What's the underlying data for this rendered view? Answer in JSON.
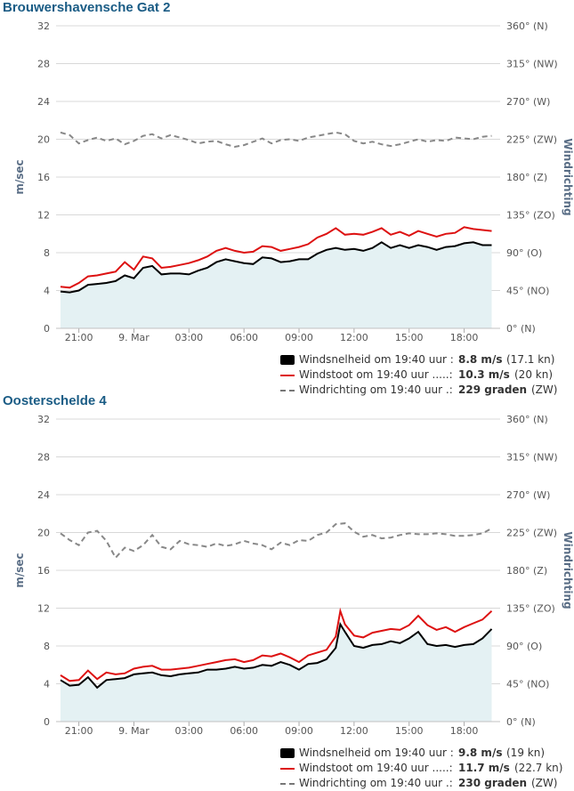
{
  "stations": [
    {
      "title": "Brouwershavensche Gat 2",
      "chart_data": {
        "type": "line",
        "y_axis_left": {
          "label": "m/sec",
          "ticks": [
            "0",
            "4",
            "8",
            "12",
            "16",
            "20",
            "24",
            "28",
            "32"
          ],
          "range": [
            0,
            32
          ]
        },
        "y_axis_right": {
          "label": "Windrichting",
          "ticks": [
            "0° (N)",
            "45° (NO)",
            "90° (O)",
            "135° (ZO)",
            "180° (Z)",
            "225° (ZW)",
            "270° (W)",
            "315° (NW)",
            "360° (N)"
          ],
          "range": [
            0,
            360
          ]
        },
        "x_axis": {
          "ticks": [
            "21:00",
            "9. Mar",
            "03:00",
            "06:00",
            "09:00",
            "12:00",
            "15:00",
            "18:00"
          ],
          "tick_hours": [
            21,
            24,
            27,
            30,
            33,
            36,
            39,
            42
          ],
          "range_hours": [
            20,
            43.67
          ]
        },
        "grid": true,
        "series": [
          {
            "name": "Windsnelheid",
            "kind": "area",
            "color": "#000000",
            "fill": "#e4f1f3",
            "x_hours": [
              20.0,
              20.5,
              21.0,
              21.5,
              22.0,
              22.5,
              23.0,
              23.5,
              24.0,
              24.5,
              25.0,
              25.5,
              26.0,
              26.5,
              27.0,
              27.5,
              28.0,
              28.5,
              29.0,
              29.5,
              30.0,
              30.5,
              31.0,
              31.5,
              32.0,
              32.5,
              33.0,
              33.5,
              34.0,
              34.5,
              35.0,
              35.5,
              36.0,
              36.5,
              37.0,
              37.5,
              38.0,
              38.5,
              39.0,
              39.5,
              40.0,
              40.5,
              41.0,
              41.5,
              42.0,
              42.5,
              43.0,
              43.5
            ],
            "values": [
              3.9,
              3.8,
              4.0,
              4.6,
              4.7,
              4.8,
              5.0,
              5.6,
              5.3,
              6.4,
              6.6,
              5.7,
              5.8,
              5.8,
              5.7,
              6.1,
              6.4,
              7.0,
              7.3,
              7.1,
              6.9,
              6.8,
              7.5,
              7.4,
              7.0,
              7.1,
              7.3,
              7.3,
              7.9,
              8.3,
              8.5,
              8.3,
              8.4,
              8.2,
              8.5,
              9.1,
              8.5,
              8.8,
              8.5,
              8.8,
              8.6,
              8.3,
              8.6,
              8.7,
              9.0,
              9.1,
              8.8,
              8.8
            ]
          },
          {
            "name": "Windstoot",
            "kind": "line",
            "color": "#dd1111",
            "x_hours": [
              20.0,
              20.5,
              21.0,
              21.5,
              22.0,
              22.5,
              23.0,
              23.5,
              24.0,
              24.5,
              25.0,
              25.5,
              26.0,
              26.5,
              27.0,
              27.5,
              28.0,
              28.5,
              29.0,
              29.5,
              30.0,
              30.5,
              31.0,
              31.5,
              32.0,
              32.5,
              33.0,
              33.5,
              34.0,
              34.5,
              35.0,
              35.5,
              36.0,
              36.5,
              37.0,
              37.5,
              38.0,
              38.5,
              39.0,
              39.5,
              40.0,
              40.5,
              41.0,
              41.5,
              42.0,
              42.5,
              43.0,
              43.5
            ],
            "values": [
              4.4,
              4.3,
              4.8,
              5.5,
              5.6,
              5.8,
              6.0,
              7.0,
              6.2,
              7.6,
              7.4,
              6.4,
              6.5,
              6.7,
              6.9,
              7.2,
              7.6,
              8.2,
              8.5,
              8.2,
              8.0,
              8.1,
              8.7,
              8.6,
              8.2,
              8.4,
              8.6,
              8.9,
              9.6,
              10.0,
              10.6,
              9.9,
              10.0,
              9.9,
              10.2,
              10.6,
              9.9,
              10.2,
              9.8,
              10.3,
              10.0,
              9.7,
              10.0,
              10.1,
              10.7,
              10.5,
              10.4,
              10.3
            ]
          },
          {
            "name": "Windrichting",
            "kind": "dashed",
            "color": "#888888",
            "axis": "right",
            "x_hours": [
              20.0,
              20.5,
              21.0,
              21.5,
              22.0,
              22.5,
              23.0,
              23.5,
              24.0,
              24.5,
              25.0,
              25.5,
              26.0,
              26.5,
              27.0,
              27.5,
              28.0,
              28.5,
              29.0,
              29.5,
              30.0,
              30.5,
              31.0,
              31.5,
              32.0,
              32.5,
              33.0,
              33.5,
              34.0,
              34.5,
              35.0,
              35.5,
              36.0,
              36.5,
              37.0,
              37.5,
              38.0,
              38.5,
              39.0,
              39.5,
              40.0,
              40.5,
              41.0,
              41.5,
              42.0,
              42.5,
              43.0,
              43.5
            ],
            "values": [
              233,
              230,
              220,
              224,
              227,
              223,
              226,
              219,
              223,
              229,
              231,
              226,
              230,
              227,
              224,
              220,
              222,
              223,
              219,
              216,
              218,
              222,
              226,
              220,
              224,
              225,
              223,
              227,
              229,
              231,
              233,
              231,
              223,
              220,
              222,
              219,
              217,
              219,
              222,
              225,
              222,
              224,
              223,
              227,
              226,
              225,
              228,
              229
            ]
          }
        ]
      },
      "legend": [
        {
          "label": "Windsnelheid om 19:40 uur :",
          "value": "8.8 m/s",
          "extra": "(17.1 kn)"
        },
        {
          "label": "Windstoot om 19:40 uur .....:",
          "value": "10.3 m/s",
          "extra": "(20 kn)"
        },
        {
          "label": "Windrichting om 19:40 uur .:",
          "value": "229 graden",
          "extra": "(ZW)"
        }
      ]
    },
    {
      "title": "Oosterschelde 4",
      "chart_data": {
        "type": "line",
        "y_axis_left": {
          "label": "m/sec",
          "ticks": [
            "0",
            "4",
            "8",
            "12",
            "16",
            "20",
            "24",
            "28",
            "32"
          ],
          "range": [
            0,
            32
          ]
        },
        "y_axis_right": {
          "label": "Windrichting",
          "ticks": [
            "0° (N)",
            "45° (NO)",
            "90° (O)",
            "135° (ZO)",
            "180° (Z)",
            "225° (ZW)",
            "270° (W)",
            "315° (NW)",
            "360° (N)"
          ],
          "range": [
            0,
            360
          ]
        },
        "x_axis": {
          "ticks": [
            "21:00",
            "9. Mar",
            "03:00",
            "06:00",
            "09:00",
            "12:00",
            "15:00",
            "18:00"
          ],
          "tick_hours": [
            21,
            24,
            27,
            30,
            33,
            36,
            39,
            42
          ],
          "range_hours": [
            20,
            43.67
          ]
        },
        "grid": true,
        "series": [
          {
            "name": "Windsnelheid",
            "kind": "area",
            "color": "#000000",
            "fill": "#e4f1f3",
            "x_hours": [
              20.0,
              20.5,
              21.0,
              21.5,
              22.0,
              22.5,
              23.0,
              23.5,
              24.0,
              24.5,
              25.0,
              25.5,
              26.0,
              26.5,
              27.0,
              27.5,
              28.0,
              28.5,
              29.0,
              29.5,
              30.0,
              30.5,
              31.0,
              31.5,
              32.0,
              32.5,
              33.0,
              33.5,
              34.0,
              34.5,
              35.0,
              35.25,
              35.5,
              36.0,
              36.5,
              37.0,
              37.5,
              38.0,
              38.5,
              39.0,
              39.5,
              40.0,
              40.5,
              41.0,
              41.5,
              42.0,
              42.5,
              43.0,
              43.5
            ],
            "values": [
              4.4,
              3.8,
              3.9,
              4.7,
              3.6,
              4.4,
              4.5,
              4.6,
              5.0,
              5.1,
              5.2,
              4.9,
              4.8,
              5.0,
              5.1,
              5.2,
              5.5,
              5.5,
              5.6,
              5.8,
              5.6,
              5.7,
              6.0,
              5.9,
              6.3,
              6.0,
              5.5,
              6.1,
              6.2,
              6.6,
              7.8,
              10.3,
              9.5,
              8.0,
              7.8,
              8.1,
              8.2,
              8.5,
              8.3,
              8.8,
              9.5,
              8.2,
              8.0,
              8.1,
              7.9,
              8.1,
              8.2,
              8.8,
              9.8
            ]
          },
          {
            "name": "Windstoot",
            "kind": "line",
            "color": "#dd1111",
            "x_hours": [
              20.0,
              20.5,
              21.0,
              21.5,
              22.0,
              22.5,
              23.0,
              23.5,
              24.0,
              24.5,
              25.0,
              25.5,
              26.0,
              26.5,
              27.0,
              27.5,
              28.0,
              28.5,
              29.0,
              29.5,
              30.0,
              30.5,
              31.0,
              31.5,
              32.0,
              32.5,
              33.0,
              33.5,
              34.0,
              34.5,
              35.0,
              35.25,
              35.5,
              36.0,
              36.5,
              37.0,
              37.5,
              38.0,
              38.5,
              39.0,
              39.5,
              40.0,
              40.5,
              41.0,
              41.5,
              42.0,
              42.5,
              43.0,
              43.5
            ],
            "values": [
              4.9,
              4.3,
              4.4,
              5.4,
              4.5,
              5.2,
              5.0,
              5.1,
              5.6,
              5.8,
              5.9,
              5.5,
              5.5,
              5.6,
              5.7,
              5.9,
              6.1,
              6.3,
              6.5,
              6.6,
              6.3,
              6.5,
              7.0,
              6.9,
              7.2,
              6.8,
              6.3,
              7.0,
              7.3,
              7.6,
              9.0,
              11.7,
              10.3,
              9.1,
              8.9,
              9.4,
              9.6,
              9.8,
              9.7,
              10.2,
              11.2,
              10.2,
              9.7,
              10.0,
              9.5,
              10.0,
              10.4,
              10.8,
              11.7
            ]
          },
          {
            "name": "Windrichting",
            "kind": "dashed",
            "color": "#888888",
            "axis": "right",
            "x_hours": [
              20.0,
              20.5,
              21.0,
              21.5,
              22.0,
              22.5,
              23.0,
              23.5,
              24.0,
              24.5,
              25.0,
              25.5,
              26.0,
              26.5,
              27.0,
              27.5,
              28.0,
              28.5,
              29.0,
              29.5,
              30.0,
              30.5,
              31.0,
              31.5,
              32.0,
              32.5,
              33.0,
              33.5,
              34.0,
              34.5,
              35.0,
              35.5,
              36.0,
              36.5,
              37.0,
              37.5,
              38.0,
              38.5,
              39.0,
              39.5,
              40.0,
              40.5,
              41.0,
              41.5,
              42.0,
              42.5,
              43.0,
              43.5
            ],
            "values": [
              224,
              216,
              210,
              225,
              227,
              215,
              195,
              207,
              203,
              210,
              222,
              208,
              205,
              215,
              211,
              210,
              208,
              212,
              209,
              211,
              215,
              212,
              210,
              205,
              213,
              210,
              216,
              215,
              222,
              225,
              235,
              236,
              226,
              220,
              222,
              218,
              219,
              222,
              224,
              223,
              223,
              224,
              223,
              221,
              221,
              222,
              224,
              230
            ]
          }
        ]
      },
      "legend": [
        {
          "label": "Windsnelheid om 19:40 uur :",
          "value": "9.8 m/s",
          "extra": "(19 kn)"
        },
        {
          "label": "Windstoot om 19:40 uur .....:",
          "value": "11.7 m/s",
          "extra": "(22.7 kn)"
        },
        {
          "label": "Windrichting om 19:40 uur .:",
          "value": "230 graden",
          "extra": "(ZW)"
        }
      ]
    }
  ]
}
